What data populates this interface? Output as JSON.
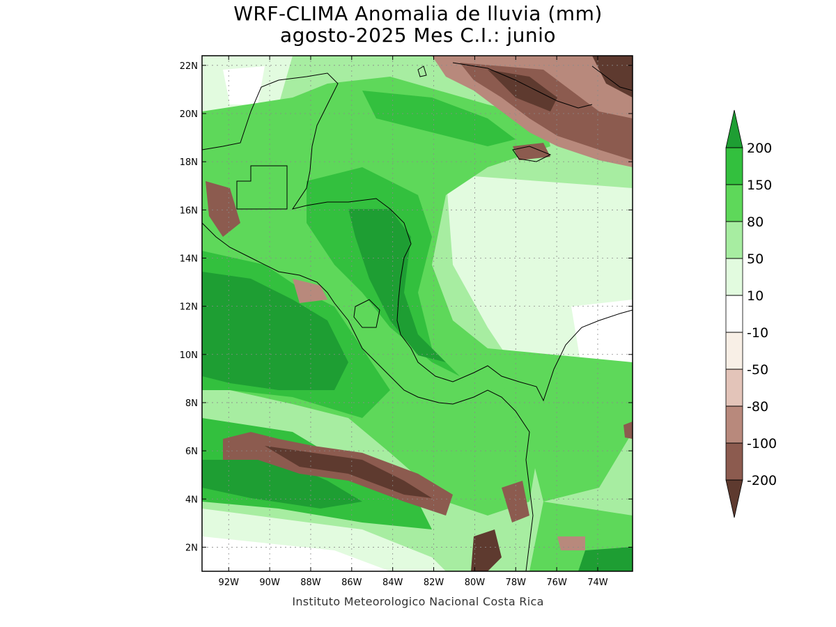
{
  "title": {
    "line1": "WRF-CLIMA Anomalia de lluvia (mm)",
    "line2": "agosto-2025 Mes C.I.: junio"
  },
  "credit": "Instituto Meteorologico Nacional Costa Rica",
  "map": {
    "lon_range": [
      -93.3,
      -72.3
    ],
    "lat_range": [
      1.0,
      22.4
    ],
    "x_ticks": [
      {
        "lon": -92,
        "label": "92W"
      },
      {
        "lon": -90,
        "label": "90W"
      },
      {
        "lon": -88,
        "label": "88W"
      },
      {
        "lon": -86,
        "label": "86W"
      },
      {
        "lon": -84,
        "label": "84W"
      },
      {
        "lon": -82,
        "label": "82W"
      },
      {
        "lon": -80,
        "label": "80W"
      },
      {
        "lon": -78,
        "label": "78W"
      },
      {
        "lon": -76,
        "label": "76W"
      },
      {
        "lon": -74,
        "label": "74W"
      }
    ],
    "y_ticks": [
      {
        "lat": 22,
        "label": "22N"
      },
      {
        "lat": 20,
        "label": "20N"
      },
      {
        "lat": 18,
        "label": "18N"
      },
      {
        "lat": 16,
        "label": "16N"
      },
      {
        "lat": 14,
        "label": "14N"
      },
      {
        "lat": 12,
        "label": "12N"
      },
      {
        "lat": 10,
        "label": "10N"
      },
      {
        "lat": 8,
        "label": "8N"
      },
      {
        "lat": 6,
        "label": "6N"
      },
      {
        "lat": 4,
        "label": "4N"
      },
      {
        "lat": 2,
        "label": "2N"
      }
    ],
    "grid": true
  },
  "colorbar": {
    "boundaries": [
      "200",
      "150",
      "80",
      "50",
      "10",
      "-10",
      "-50",
      "-80",
      "-100",
      "-200"
    ],
    "colors": {
      "gt200": "#1e9e33",
      "150_200": "#33c03e",
      "80_150": "#5ed85a",
      "50_80": "#a7eda1",
      "10_50": "#e2fbdf",
      "neutral": "#ffffff",
      "m50_m10": "#f8efe6",
      "m80_m50": "#e3c4b9",
      "m100_m80": "#b8897c",
      "m200_m100": "#8c5b4f",
      "lt_m200": "#5e3a2f"
    }
  }
}
